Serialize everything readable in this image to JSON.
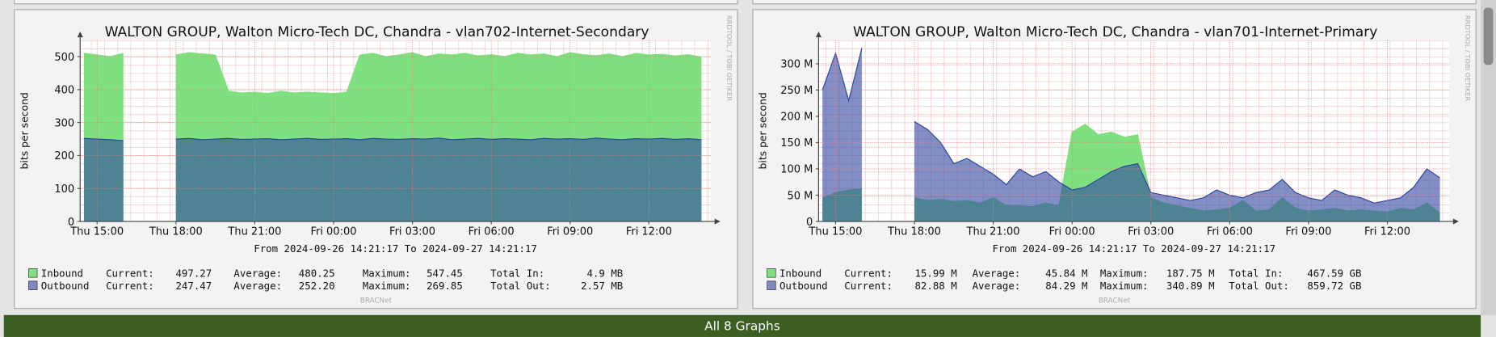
{
  "chart_data": [
    {
      "type": "area",
      "title": "WALTON GROUP, Walton Micro-Tech DC, Chandra -  vlan702-Internet-Secondary",
      "y_label": "bits per second",
      "range_label": "From 2024-09-26 14:21:17 To 2024-09-27 14:21:17",
      "footer": "BRACNet",
      "side_label": "RRDTOOL / TOBI OETIKER",
      "xlim": [
        "2024-09-26 14:21:17",
        "2024-09-27 14:21:17"
      ],
      "xticks": [
        {
          "value": "2024-09-26 15:00",
          "label": "Thu 15:00"
        },
        {
          "value": "2024-09-26 18:00",
          "label": "Thu 18:00"
        },
        {
          "value": "2024-09-26 21:00",
          "label": "Thu 21:00"
        },
        {
          "value": "2024-09-27 00:00",
          "label": "Fri 00:00"
        },
        {
          "value": "2024-09-27 03:00",
          "label": "Fri 03:00"
        },
        {
          "value": "2024-09-27 06:00",
          "label": "Fri 06:00"
        },
        {
          "value": "2024-09-27 09:00",
          "label": "Fri 09:00"
        },
        {
          "value": "2024-09-27 12:00",
          "label": "Fri 12:00"
        }
      ],
      "ylim": [
        0,
        550
      ],
      "yticks": [
        0,
        100,
        200,
        300,
        400,
        500
      ],
      "grid": true,
      "x": [
        "2024-09-26 14:30",
        "2024-09-26 15:00",
        "2024-09-26 15:30",
        "2024-09-26 16:00",
        "2024-09-26 16:30",
        "2024-09-26 17:00",
        "2024-09-26 17:30",
        "2024-09-26 18:00",
        "2024-09-26 18:30",
        "2024-09-26 19:00",
        "2024-09-26 19:30",
        "2024-09-26 20:00",
        "2024-09-26 20:30",
        "2024-09-26 21:00",
        "2024-09-26 21:30",
        "2024-09-26 22:00",
        "2024-09-26 22:30",
        "2024-09-26 23:00",
        "2024-09-26 23:30",
        "2024-09-27 00:00",
        "2024-09-27 00:30",
        "2024-09-27 01:00",
        "2024-09-27 01:30",
        "2024-09-27 02:00",
        "2024-09-27 02:30",
        "2024-09-27 03:00",
        "2024-09-27 03:30",
        "2024-09-27 04:00",
        "2024-09-27 04:30",
        "2024-09-27 05:00",
        "2024-09-27 05:30",
        "2024-09-27 06:00",
        "2024-09-27 06:30",
        "2024-09-27 07:00",
        "2024-09-27 07:30",
        "2024-09-27 08:00",
        "2024-09-27 08:30",
        "2024-09-27 09:00",
        "2024-09-27 09:30",
        "2024-09-27 10:00",
        "2024-09-27 10:30",
        "2024-09-27 11:00",
        "2024-09-27 11:30",
        "2024-09-27 12:00",
        "2024-09-27 12:30",
        "2024-09-27 13:00",
        "2024-09-27 13:30",
        "2024-09-27 14:00"
      ],
      "series": [
        {
          "name": "Inbound",
          "color": "#7ee07e",
          "opacity": 1,
          "values": [
            510,
            505,
            500,
            510,
            null,
            null,
            null,
            505,
            512,
            508,
            505,
            395,
            390,
            392,
            388,
            395,
            390,
            392,
            390,
            388,
            392,
            505,
            510,
            500,
            505,
            512,
            500,
            508,
            505,
            510,
            502,
            506,
            500,
            510,
            505,
            508,
            500,
            512,
            506,
            503,
            508,
            500,
            510,
            505,
            507,
            502,
            506,
            498
          ],
          "stats": [
            {
              "label": "Current:",
              "value": "497.27"
            },
            {
              "label": "Average:",
              "value": "480.25"
            },
            {
              "label": "Maximum:",
              "value": "547.45"
            },
            {
              "label": "Total In:",
              "value": "4.9 MB"
            }
          ]
        },
        {
          "name": "Outbound",
          "color": "#2d44a0",
          "opacity": 0.6,
          "values": [
            252,
            250,
            248,
            245,
            null,
            null,
            null,
            250,
            252,
            248,
            250,
            252,
            249,
            250,
            251,
            248,
            250,
            252,
            249,
            250,
            251,
            248,
            252,
            250,
            249,
            251,
            250,
            253,
            248,
            250,
            252,
            249,
            251,
            250,
            248,
            252,
            250,
            251,
            249,
            253,
            250,
            248,
            251,
            250,
            252,
            249,
            251,
            248
          ],
          "stats": [
            {
              "label": "Current:",
              "value": "247.47"
            },
            {
              "label": "Average:",
              "value": "252.20"
            },
            {
              "label": "Maximum:",
              "value": "269.85"
            },
            {
              "label": "Total Out:",
              "value": "2.57 MB"
            }
          ]
        }
      ]
    },
    {
      "type": "area",
      "title": "WALTON GROUP, Walton Micro-Tech DC, Chandra - vlan701-Internet-Primary",
      "y_label": "bits per second",
      "range_label": "From 2024-09-26 14:21:17 To 2024-09-27 14:21:17",
      "footer": "BRACNet",
      "side_label": "RRDTOOL / TOBI OETIKER",
      "xlim": [
        "2024-09-26 14:21:17",
        "2024-09-27 14:21:17"
      ],
      "xticks": [
        {
          "value": "2024-09-26 15:00",
          "label": "Thu 15:00"
        },
        {
          "value": "2024-09-26 18:00",
          "label": "Thu 18:00"
        },
        {
          "value": "2024-09-26 21:00",
          "label": "Thu 21:00"
        },
        {
          "value": "2024-09-27 00:00",
          "label": "Fri 00:00"
        },
        {
          "value": "2024-09-27 03:00",
          "label": "Fri 03:00"
        },
        {
          "value": "2024-09-27 06:00",
          "label": "Fri 06:00"
        },
        {
          "value": "2024-09-27 09:00",
          "label": "Fri 09:00"
        },
        {
          "value": "2024-09-27 12:00",
          "label": "Fri 12:00"
        }
      ],
      "ylim": [
        0,
        345000000
      ],
      "yticks": [
        0,
        {
          "value": 50000000,
          "label": "50 M"
        },
        {
          "value": 100000000,
          "label": "100 M"
        },
        {
          "value": 150000000,
          "label": "150 M"
        },
        {
          "value": 200000000,
          "label": "200 M"
        },
        {
          "value": 250000000,
          "label": "250 M"
        },
        {
          "value": 300000000,
          "label": "300 M"
        }
      ],
      "grid": true,
      "x": [
        "2024-09-26 14:30",
        "2024-09-26 15:00",
        "2024-09-26 15:30",
        "2024-09-26 16:00",
        "2024-09-26 16:30",
        "2024-09-26 17:00",
        "2024-09-26 17:30",
        "2024-09-26 18:00",
        "2024-09-26 18:30",
        "2024-09-26 19:00",
        "2024-09-26 19:30",
        "2024-09-26 20:00",
        "2024-09-26 20:30",
        "2024-09-26 21:00",
        "2024-09-26 21:30",
        "2024-09-26 22:00",
        "2024-09-26 22:30",
        "2024-09-26 23:00",
        "2024-09-26 23:30",
        "2024-09-27 00:00",
        "2024-09-27 00:30",
        "2024-09-27 01:00",
        "2024-09-27 01:30",
        "2024-09-27 02:00",
        "2024-09-27 02:30",
        "2024-09-27 03:00",
        "2024-09-27 03:30",
        "2024-09-27 04:00",
        "2024-09-27 04:30",
        "2024-09-27 05:00",
        "2024-09-27 05:30",
        "2024-09-27 06:00",
        "2024-09-27 06:30",
        "2024-09-27 07:00",
        "2024-09-27 07:30",
        "2024-09-27 08:00",
        "2024-09-27 08:30",
        "2024-09-27 09:00",
        "2024-09-27 09:30",
        "2024-09-27 10:00",
        "2024-09-27 10:30",
        "2024-09-27 11:00",
        "2024-09-27 11:30",
        "2024-09-27 12:00",
        "2024-09-27 12:30",
        "2024-09-27 13:00",
        "2024-09-27 13:30",
        "2024-09-27 14:00"
      ],
      "series": [
        {
          "name": "Inbound",
          "color": "#7ee07e",
          "opacity": 1,
          "values": [
            45000000,
            55000000,
            60000000,
            62000000,
            null,
            null,
            null,
            45000000,
            40000000,
            42000000,
            38000000,
            40000000,
            35000000,
            45000000,
            30000000,
            30000000,
            28000000,
            35000000,
            30000000,
            170000000,
            185000000,
            165000000,
            170000000,
            160000000,
            165000000,
            45000000,
            35000000,
            30000000,
            25000000,
            20000000,
            22000000,
            25000000,
            40000000,
            20000000,
            22000000,
            45000000,
            25000000,
            20000000,
            22000000,
            25000000,
            20000000,
            22000000,
            20000000,
            18000000,
            25000000,
            22000000,
            35000000,
            16000000
          ],
          "stats": [
            {
              "label": "Current:",
              "value": "15.99 M"
            },
            {
              "label": "Average:",
              "value": "45.84 M"
            },
            {
              "label": "Maximum:",
              "value": "187.75 M"
            },
            {
              "label": "Total In:",
              "value": "467.59 GB"
            }
          ]
        },
        {
          "name": "Outbound",
          "color": "#2d44a0",
          "opacity": 0.6,
          "values": [
            250000000,
            320000000,
            230000000,
            330000000,
            null,
            null,
            null,
            190000000,
            175000000,
            150000000,
            110000000,
            120000000,
            105000000,
            90000000,
            70000000,
            100000000,
            85000000,
            95000000,
            75000000,
            60000000,
            65000000,
            80000000,
            95000000,
            105000000,
            110000000,
            55000000,
            50000000,
            45000000,
            40000000,
            45000000,
            60000000,
            50000000,
            45000000,
            55000000,
            60000000,
            80000000,
            55000000,
            45000000,
            40000000,
            60000000,
            50000000,
            45000000,
            35000000,
            40000000,
            45000000,
            65000000,
            100000000,
            83000000
          ],
          "stats": [
            {
              "label": "Current:",
              "value": "82.88 M"
            },
            {
              "label": "Average:",
              "value": "84.29 M"
            },
            {
              "label": "Maximum:",
              "value": "340.89 M"
            },
            {
              "label": "Total Out:",
              "value": "859.72 GB"
            }
          ]
        }
      ]
    }
  ],
  "footer_bar": "All 8 Graphs"
}
